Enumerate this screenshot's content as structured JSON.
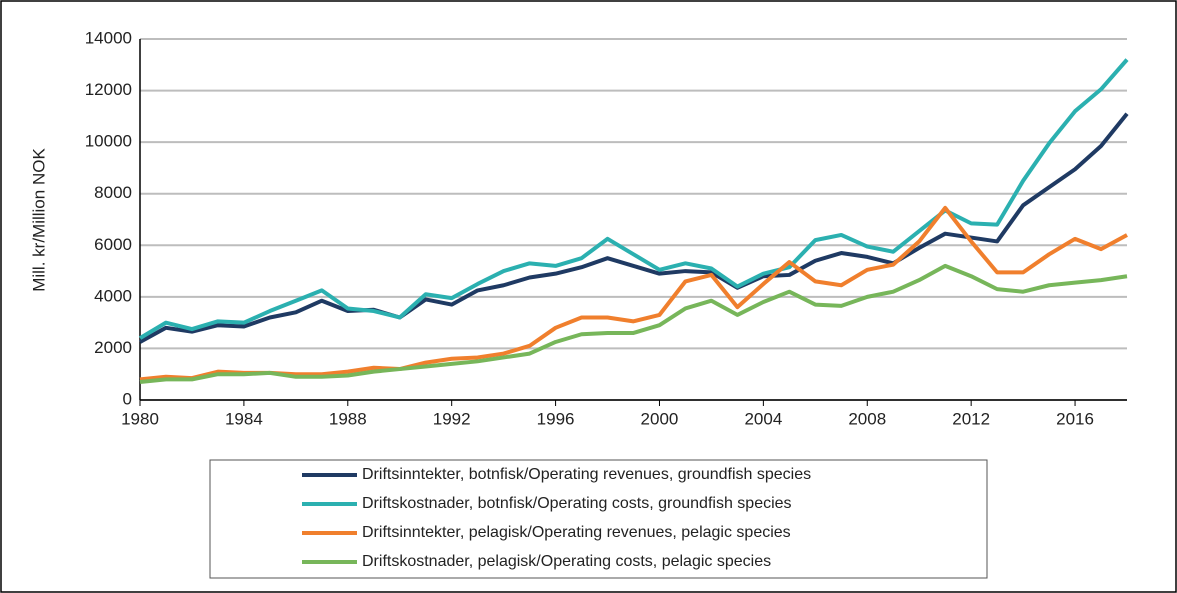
{
  "chart_data": {
    "type": "line",
    "ylabel": "Mill. kr/Million NOK",
    "x": [
      1980,
      1981,
      1982,
      1983,
      1984,
      1985,
      1986,
      1987,
      1988,
      1989,
      1990,
      1991,
      1992,
      1993,
      1994,
      1995,
      1996,
      1997,
      1998,
      1999,
      2000,
      2001,
      2002,
      2003,
      2004,
      2005,
      2006,
      2007,
      2008,
      2009,
      2010,
      2011,
      2012,
      2013,
      2014,
      2015,
      2016,
      2017,
      2018
    ],
    "xlim": [
      1980,
      2018
    ],
    "xticks": [
      1980,
      1984,
      1988,
      1992,
      1996,
      2000,
      2004,
      2008,
      2012,
      2016
    ],
    "ylim": [
      0,
      14000
    ],
    "yticks": [
      0,
      2000,
      4000,
      6000,
      8000,
      10000,
      12000,
      14000
    ],
    "grid": true,
    "legend": "bottom",
    "series": [
      {
        "name": "Driftsinntekter, botnfisk/Operating revenues, groundfish species",
        "color": "#1f3a63",
        "values": [
          2250,
          2800,
          2650,
          2900,
          2850,
          3200,
          3400,
          3850,
          3450,
          3500,
          3200,
          3900,
          3700,
          4250,
          4450,
          4750,
          4900,
          5150,
          5500,
          5200,
          4900,
          5000,
          4950,
          4350,
          4800,
          4850,
          5400,
          5700,
          5550,
          5300,
          5900,
          6450,
          6300,
          6150,
          7550,
          8250,
          8950,
          9850,
          11100
        ]
      },
      {
        "name": "Driftskostnader, botnfisk/Operating costs, groundfish species",
        "color": "#2bb0b0",
        "values": [
          2400,
          3000,
          2750,
          3050,
          3000,
          3450,
          3850,
          4250,
          3550,
          3450,
          3200,
          4100,
          3950,
          4500,
          5000,
          5300,
          5200,
          5500,
          6250,
          5650,
          5050,
          5300,
          5100,
          4400,
          4900,
          5150,
          6200,
          6400,
          5950,
          5750,
          6550,
          7350,
          6850,
          6800,
          8500,
          9950,
          11200,
          12050,
          13200
        ]
      },
      {
        "name": "Driftsinntekter, pelagisk/Operating revenues, pelagic species",
        "color": "#f07f2d",
        "values": [
          800,
          900,
          850,
          1100,
          1050,
          1050,
          1000,
          1000,
          1100,
          1250,
          1200,
          1450,
          1600,
          1650,
          1800,
          2100,
          2800,
          3200,
          3200,
          3050,
          3300,
          4600,
          4850,
          3600,
          4500,
          5350,
          4600,
          4450,
          5050,
          5250,
          6150,
          7450,
          6150,
          4950,
          4950,
          5650,
          6250,
          5850,
          6400
        ]
      },
      {
        "name": "Driftskostnader, pelagisk/Operating costs, pelagic species",
        "color": "#77b65a",
        "values": [
          700,
          800,
          800,
          1000,
          1000,
          1050,
          900,
          900,
          950,
          1100,
          1200,
          1300,
          1400,
          1500,
          1650,
          1800,
          2250,
          2550,
          2600,
          2600,
          2900,
          3550,
          3850,
          3300,
          3800,
          4200,
          3700,
          3650,
          4000,
          4200,
          4650,
          5200,
          4800,
          4300,
          4200,
          4450,
          4550,
          4650,
          4800
        ]
      }
    ]
  }
}
